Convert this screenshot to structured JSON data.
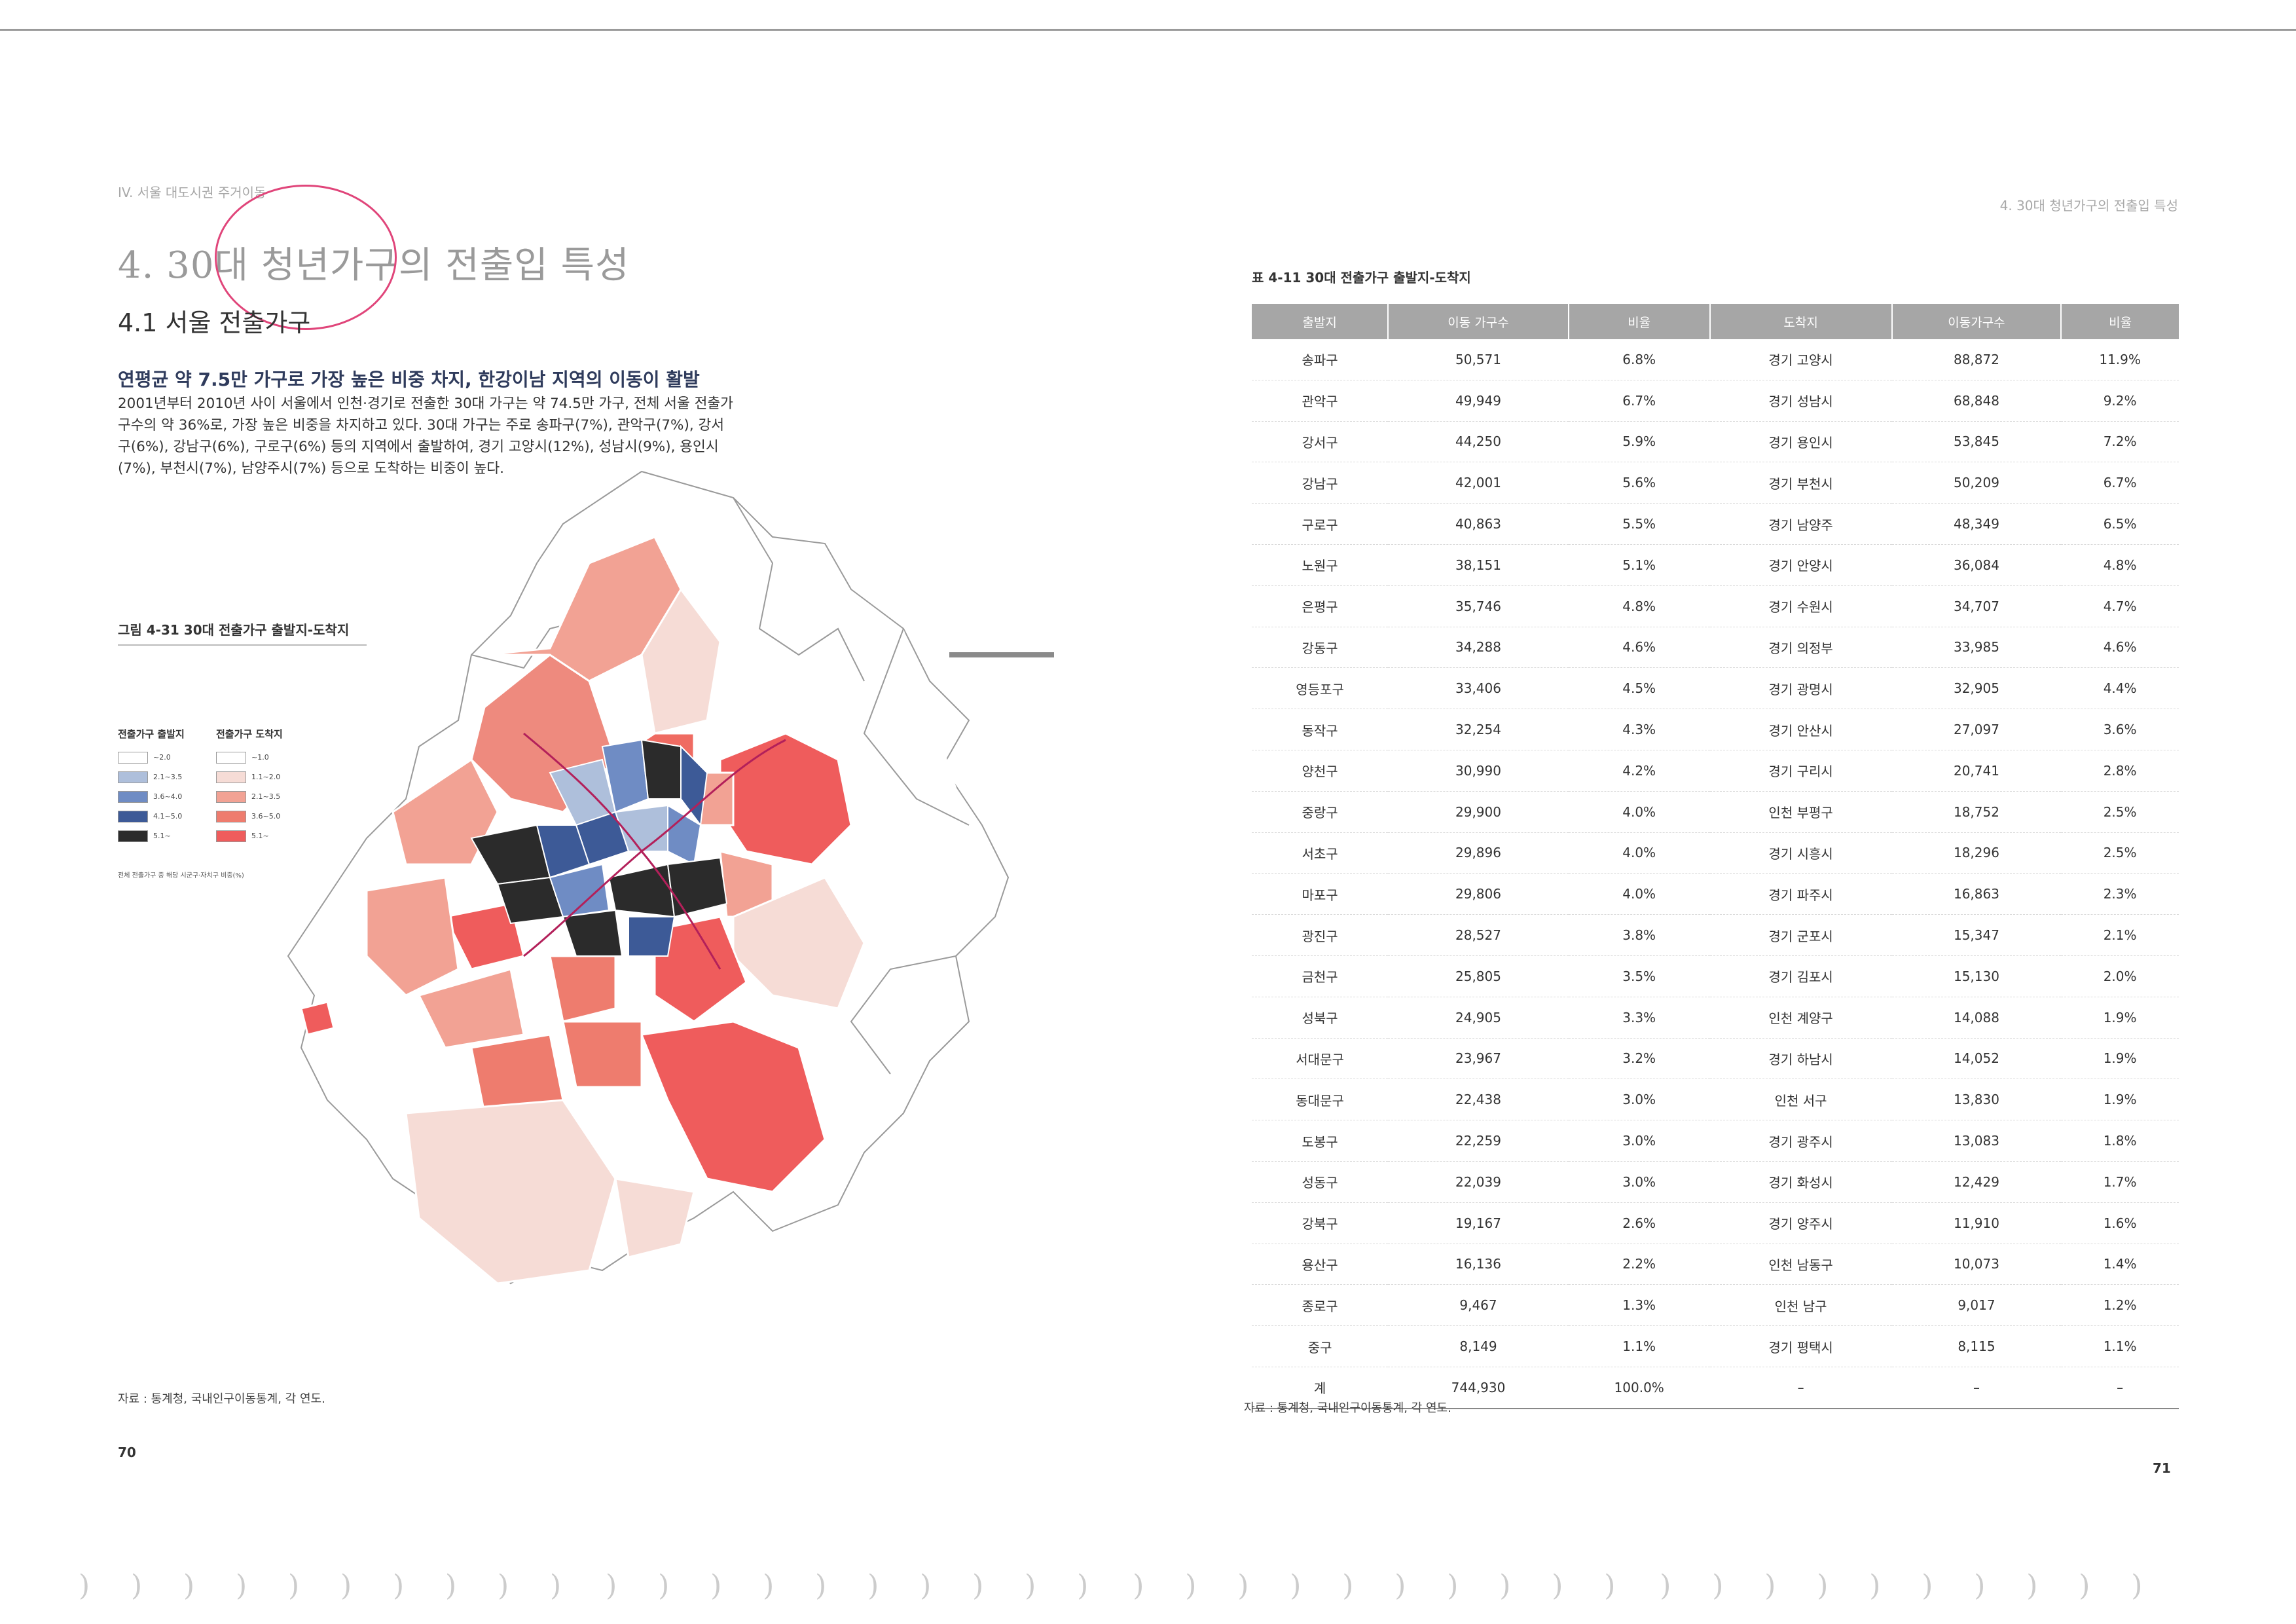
{
  "left_page": {
    "breadcrumb": "IV. 서울 대도시권 주거이동",
    "chapter_title": "4. 30대 청년가구의 전출입 특성",
    "section_title": "4.1 서울 전출가구",
    "headline": "연평균 약 7.5만 가구로 가장 높은 비중 차지, 한강이남 지역의 이동이 활발",
    "body": "2001년부터 2010년 사이 서울에서 인천·경기로 전출한 30대 가구는 약 74.5만 가구, 전체 서울 전출가구수의 약 36%로, 가장 높은 비중을 차지하고 있다. 30대 가구는 주로 송파구(7%), 관악구(7%), 강서구(6%), 강남구(6%), 구로구(6%) 등의 지역에서 출발하여, 경기 고양시(12%), 성남시(9%), 용인시(7%), 부천시(7%), 남양주시(7%) 등으로 도착하는 비중이 높다.",
    "figure_title": "그림 4-31 30대 전출가구 출발지-도착지",
    "legend": {
      "origin_header": "전출가구 출발지",
      "destination_header": "전출가구 도착지",
      "origin_classes": [
        "~2.0",
        "2.1~3.5",
        "3.6~4.0",
        "4.1~5.0",
        "5.1~"
      ],
      "destination_classes": [
        "~1.0",
        "1.1~2.0",
        "2.1~3.5",
        "3.6~5.0",
        "5.1~"
      ],
      "origin_colors": [
        "#ffffff",
        "#aebfdb",
        "#6f8cc4",
        "#3d5a97",
        "#2b2b2b"
      ],
      "destination_colors": [
        "#ffffff",
        "#f6dcd6",
        "#f2a294",
        "#ee7c6e",
        "#ef5c5c"
      ],
      "note": "전체 전출가구 중 해당 시군구·자치구 비중(%)"
    },
    "source": "자료 : 통계청, 국내인구이동통계, 각 연도.",
    "page_number": "70"
  },
  "right_page": {
    "breadcrumb": "4. 30대 청년가구의 전출입 특성",
    "table_title": "표 4-11 30대 전출가구 출발지-도착지",
    "columns": [
      "출발지",
      "이동 가구수",
      "비율",
      "도착지",
      "이동가구수",
      "비율"
    ],
    "rows": [
      [
        "송파구",
        "50,571",
        "6.8%",
        "경기 고양시",
        "88,872",
        "11.9%"
      ],
      [
        "관악구",
        "49,949",
        "6.7%",
        "경기 성남시",
        "68,848",
        "9.2%"
      ],
      [
        "강서구",
        "44,250",
        "5.9%",
        "경기 용인시",
        "53,845",
        "7.2%"
      ],
      [
        "강남구",
        "42,001",
        "5.6%",
        "경기 부천시",
        "50,209",
        "6.7%"
      ],
      [
        "구로구",
        "40,863",
        "5.5%",
        "경기 남양주",
        "48,349",
        "6.5%"
      ],
      [
        "노원구",
        "38,151",
        "5.1%",
        "경기 안양시",
        "36,084",
        "4.8%"
      ],
      [
        "은평구",
        "35,746",
        "4.8%",
        "경기 수원시",
        "34,707",
        "4.7%"
      ],
      [
        "강동구",
        "34,288",
        "4.6%",
        "경기 의정부",
        "33,985",
        "4.6%"
      ],
      [
        "영등포구",
        "33,406",
        "4.5%",
        "경기 광명시",
        "32,905",
        "4.4%"
      ],
      [
        "동작구",
        "32,254",
        "4.3%",
        "경기 안산시",
        "27,097",
        "3.6%"
      ],
      [
        "양천구",
        "30,990",
        "4.2%",
        "경기 구리시",
        "20,741",
        "2.8%"
      ],
      [
        "중랑구",
        "29,900",
        "4.0%",
        "인천 부평구",
        "18,752",
        "2.5%"
      ],
      [
        "서초구",
        "29,896",
        "4.0%",
        "경기 시흥시",
        "18,296",
        "2.5%"
      ],
      [
        "마포구",
        "29,806",
        "4.0%",
        "경기 파주시",
        "16,863",
        "2.3%"
      ],
      [
        "광진구",
        "28,527",
        "3.8%",
        "경기 군포시",
        "15,347",
        "2.1%"
      ],
      [
        "금천구",
        "25,805",
        "3.5%",
        "경기 김포시",
        "15,130",
        "2.0%"
      ],
      [
        "성북구",
        "24,905",
        "3.3%",
        "인천 계양구",
        "14,088",
        "1.9%"
      ],
      [
        "서대문구",
        "23,967",
        "3.2%",
        "경기 하남시",
        "14,052",
        "1.9%"
      ],
      [
        "동대문구",
        "22,438",
        "3.0%",
        "인천 서구",
        "13,830",
        "1.9%"
      ],
      [
        "도봉구",
        "22,259",
        "3.0%",
        "경기 광주시",
        "13,083",
        "1.8%"
      ],
      [
        "성동구",
        "22,039",
        "3.0%",
        "경기 화성시",
        "12,429",
        "1.7%"
      ],
      [
        "강북구",
        "19,167",
        "2.6%",
        "경기 양주시",
        "11,910",
        "1.6%"
      ],
      [
        "용산구",
        "16,136",
        "2.2%",
        "인천 남동구",
        "10,073",
        "1.4%"
      ],
      [
        "종로구",
        "9,467",
        "1.3%",
        "인천 남구",
        "9,017",
        "1.2%"
      ],
      [
        "중구",
        "8,149",
        "1.1%",
        "경기 평택시",
        "8,115",
        "1.1%"
      ],
      [
        "계",
        "744,930",
        "100.0%",
        "–",
        "–",
        "–"
      ]
    ],
    "source": "자료 : 통계청, 국내인구이동통계, 각 연도.",
    "page_number": "71"
  }
}
